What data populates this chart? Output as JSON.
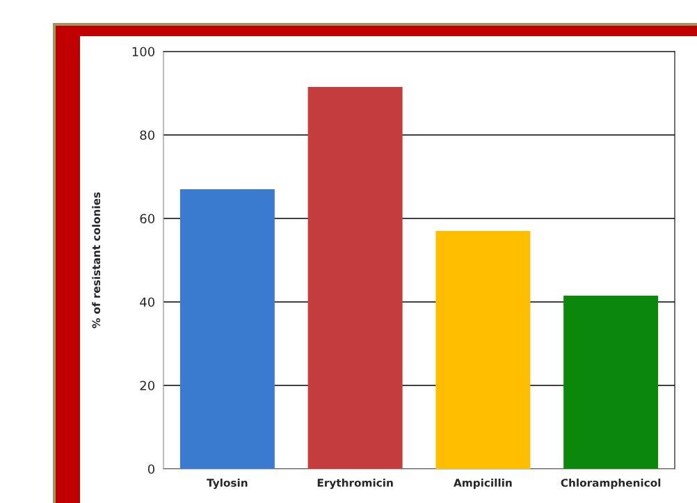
{
  "chart_data": {
    "type": "bar",
    "ylabel": "% of resistant colonies",
    "categories": [
      "Tylosin",
      "Erythromicin",
      "Ampicillin",
      "Chloramphenicol"
    ],
    "values": [
      67,
      91.5,
      57,
      41.5
    ],
    "colors": [
      "#3a7bd0",
      "#c43c3c",
      "#ffbf00",
      "#0b870b"
    ],
    "ylim": [
      0,
      100
    ],
    "yticks": [
      0,
      20,
      40,
      60,
      80,
      100
    ],
    "grid": "y",
    "legend": false
  }
}
